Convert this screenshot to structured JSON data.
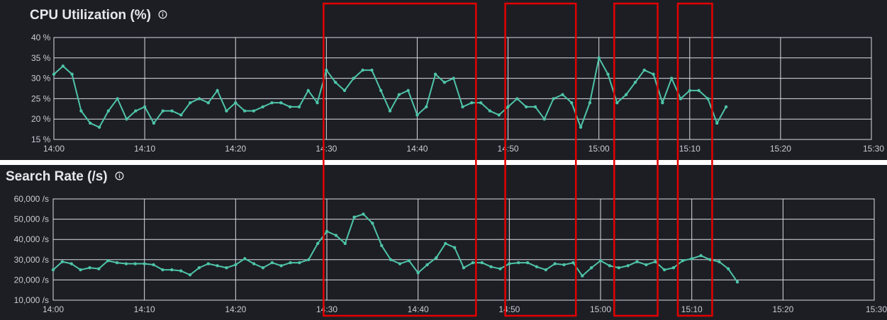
{
  "panels": {
    "cpu": {
      "title": "CPU Utilization (%)",
      "info_icon": "info-icon"
    },
    "search": {
      "title": "Search Rate (/s)",
      "info_icon": "info-icon"
    }
  },
  "colors": {
    "background": "#1d1e24",
    "series": "#4ec4a8",
    "grid": "#d9dce3",
    "highlight": "#e30000"
  },
  "chart_data": [
    {
      "type": "line",
      "title": "CPU Utilization (%)",
      "xlabel": "",
      "ylabel": "",
      "x_range": [
        "14:00",
        "15:30"
      ],
      "x_ticks": [
        "14:00",
        "14:10",
        "14:20",
        "14:30",
        "14:40",
        "14:50",
        "15:00",
        "15:10",
        "15:20",
        "15:30"
      ],
      "ylim": [
        15,
        40
      ],
      "y_ticks": [
        "15 %",
        "20 %",
        "25 %",
        "30 %",
        "35 %",
        "40 %"
      ],
      "grid": true,
      "x": [
        "14:00",
        "14:01",
        "14:02",
        "14:03",
        "14:04",
        "14:05",
        "14:06",
        "14:07",
        "14:08",
        "14:09",
        "14:10",
        "14:11",
        "14:12",
        "14:13",
        "14:14",
        "14:15",
        "14:16",
        "14:17",
        "14:18",
        "14:19",
        "14:20",
        "14:21",
        "14:22",
        "14:23",
        "14:24",
        "14:25",
        "14:26",
        "14:27",
        "14:28",
        "14:29",
        "14:30",
        "14:31",
        "14:32",
        "14:33",
        "14:34",
        "14:35",
        "14:36",
        "14:37",
        "14:38",
        "14:39",
        "14:40",
        "14:41",
        "14:42",
        "14:43",
        "14:44",
        "14:45",
        "14:46",
        "14:47",
        "14:48",
        "14:49",
        "14:50",
        "14:51",
        "14:52",
        "14:53",
        "14:54",
        "14:55",
        "14:56",
        "14:57",
        "14:58",
        "14:59",
        "15:00",
        "15:01",
        "15:02",
        "15:03",
        "15:04",
        "15:05",
        "15:06",
        "15:07",
        "15:08",
        "15:09",
        "15:10",
        "15:11",
        "15:12",
        "15:13",
        "15:14"
      ],
      "values": [
        31,
        33,
        31,
        22,
        19,
        18,
        22,
        25,
        20,
        22,
        23,
        19,
        22,
        22,
        21,
        24,
        25,
        24,
        27,
        22,
        24,
        22,
        22,
        23,
        24,
        24,
        23,
        23,
        27,
        24,
        32,
        29,
        27,
        30,
        32,
        32,
        27,
        22,
        26,
        27,
        21,
        23,
        31,
        29,
        30,
        23,
        24,
        24,
        22,
        21,
        23,
        25,
        23,
        23,
        20,
        25,
        26,
        24,
        18,
        24,
        35,
        31,
        24,
        26,
        29,
        32,
        31,
        24,
        30,
        25,
        27,
        27,
        25,
        19,
        23
      ]
    },
    {
      "type": "line",
      "title": "Search Rate (/s)",
      "xlabel": "",
      "ylabel": "",
      "x_range": [
        "14:00",
        "15:30"
      ],
      "x_ticks": [
        "14:00",
        "14:10",
        "14:20",
        "14:30",
        "14:40",
        "14:50",
        "15:00",
        "15:10",
        "15:20",
        "15:30"
      ],
      "ylim": [
        10000,
        60000
      ],
      "y_ticks": [
        "10,000 /s",
        "20,000 /s",
        "30,000 /s",
        "40,000 /s",
        "50,000 /s",
        "60,000 /s"
      ],
      "grid": true,
      "x": [
        "14:00",
        "14:01",
        "14:02",
        "14:03",
        "14:04",
        "14:05",
        "14:06",
        "14:07",
        "14:08",
        "14:09",
        "14:10",
        "14:11",
        "14:12",
        "14:13",
        "14:14",
        "14:15",
        "14:16",
        "14:17",
        "14:18",
        "14:19",
        "14:20",
        "14:21",
        "14:22",
        "14:23",
        "14:24",
        "14:25",
        "14:26",
        "14:27",
        "14:28",
        "14:29",
        "14:30",
        "14:31",
        "14:32",
        "14:33",
        "14:34",
        "14:35",
        "14:36",
        "14:37",
        "14:38",
        "14:39",
        "14:40",
        "14:41",
        "14:42",
        "14:43",
        "14:44",
        "14:45",
        "14:46",
        "14:47",
        "14:48",
        "14:49",
        "14:50",
        "14:51",
        "14:52",
        "14:53",
        "14:54",
        "14:55",
        "14:56",
        "14:57",
        "14:58",
        "14:59",
        "15:00",
        "15:01",
        "15:02",
        "15:03",
        "15:04",
        "15:05",
        "15:06",
        "15:07",
        "15:08",
        "15:09",
        "15:10",
        "15:11",
        "15:12",
        "15:13",
        "15:14",
        "15:15"
      ],
      "values": [
        25000,
        29000,
        28000,
        25000,
        26000,
        25500,
        29500,
        28500,
        28000,
        28000,
        28000,
        27500,
        25000,
        25000,
        24500,
        22500,
        26000,
        28000,
        27000,
        26000,
        27500,
        30500,
        28000,
        26000,
        28500,
        27000,
        28500,
        28500,
        30000,
        38000,
        44000,
        42000,
        38000,
        51000,
        52500,
        48000,
        37000,
        30000,
        28000,
        29500,
        23500,
        27500,
        31000,
        38000,
        36000,
        26000,
        28500,
        28500,
        26500,
        25500,
        28000,
        28500,
        28500,
        26500,
        25000,
        28000,
        27500,
        28500,
        22000,
        26000,
        29500,
        27000,
        26000,
        27000,
        29000,
        27500,
        29000,
        25000,
        26000,
        29500,
        30500,
        32000,
        30000,
        29000,
        25500,
        19000
      ]
    }
  ],
  "highlight_boxes": [
    {
      "from": "14:30",
      "to": "14:46"
    },
    {
      "from": "14:50",
      "to": "14:57"
    },
    {
      "from": "15:02",
      "to": "15:06"
    },
    {
      "from": "15:09",
      "to": "15:12"
    }
  ]
}
